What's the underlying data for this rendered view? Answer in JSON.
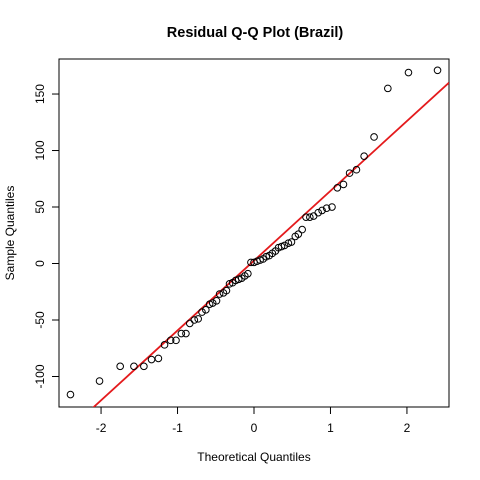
{
  "chart_data": {
    "type": "scatter",
    "title": "Residual Q-Q Plot (Brazil)",
    "xlabel": "Theoretical Quantiles",
    "ylabel": "Sample Quantiles",
    "xlim": [
      -2.55,
      2.55
    ],
    "ylim": [
      -127,
      181
    ],
    "x_ticks": [
      -2,
      -1,
      0,
      1,
      2
    ],
    "y_ticks": [
      -100,
      -50,
      0,
      50,
      100,
      150
    ],
    "x_tick_labels": [
      "-2",
      "-1",
      "0",
      "1",
      "2"
    ],
    "y_tick_labels": [
      "-100",
      "-50",
      "0",
      "50",
      "100",
      "150"
    ],
    "grid": false,
    "colors": {
      "points": "#000000",
      "reference_line": "#e41a1c"
    },
    "reference_line": {
      "intercept": 2.5,
      "slope": 61.8
    },
    "points": [
      {
        "x": -2.4,
        "y": -116
      },
      {
        "x": -2.02,
        "y": -104
      },
      {
        "x": -1.75,
        "y": -91
      },
      {
        "x": -1.57,
        "y": -91
      },
      {
        "x": -1.44,
        "y": -91
      },
      {
        "x": -1.34,
        "y": -85
      },
      {
        "x": -1.25,
        "y": -84
      },
      {
        "x": -1.17,
        "y": -72
      },
      {
        "x": -1.09,
        "y": -68
      },
      {
        "x": -1.02,
        "y": -68
      },
      {
        "x": -0.95,
        "y": -62
      },
      {
        "x": -0.89,
        "y": -62
      },
      {
        "x": -0.84,
        "y": -53
      },
      {
        "x": -0.78,
        "y": -50
      },
      {
        "x": -0.73,
        "y": -49
      },
      {
        "x": -0.68,
        "y": -43
      },
      {
        "x": -0.63,
        "y": -41
      },
      {
        "x": -0.58,
        "y": -36
      },
      {
        "x": -0.54,
        "y": -35
      },
      {
        "x": -0.49,
        "y": -33
      },
      {
        "x": -0.45,
        "y": -27
      },
      {
        "x": -0.4,
        "y": -26
      },
      {
        "x": -0.36,
        "y": -24
      },
      {
        "x": -0.32,
        "y": -18
      },
      {
        "x": -0.28,
        "y": -17
      },
      {
        "x": -0.24,
        "y": -15
      },
      {
        "x": -0.2,
        "y": -14
      },
      {
        "x": -0.16,
        "y": -13
      },
      {
        "x": -0.12,
        "y": -11
      },
      {
        "x": -0.08,
        "y": -9
      },
      {
        "x": -0.04,
        "y": 1
      },
      {
        "x": 0.0,
        "y": 1
      },
      {
        "x": 0.04,
        "y": 2
      },
      {
        "x": 0.08,
        "y": 3
      },
      {
        "x": 0.12,
        "y": 4
      },
      {
        "x": 0.16,
        "y": 6
      },
      {
        "x": 0.2,
        "y": 7
      },
      {
        "x": 0.24,
        "y": 9
      },
      {
        "x": 0.28,
        "y": 11
      },
      {
        "x": 0.32,
        "y": 14
      },
      {
        "x": 0.36,
        "y": 15
      },
      {
        "x": 0.4,
        "y": 16
      },
      {
        "x": 0.45,
        "y": 18
      },
      {
        "x": 0.49,
        "y": 19
      },
      {
        "x": 0.54,
        "y": 24
      },
      {
        "x": 0.58,
        "y": 26
      },
      {
        "x": 0.63,
        "y": 30
      },
      {
        "x": 0.68,
        "y": 41
      },
      {
        "x": 0.73,
        "y": 41
      },
      {
        "x": 0.78,
        "y": 42
      },
      {
        "x": 0.84,
        "y": 45
      },
      {
        "x": 0.89,
        "y": 47
      },
      {
        "x": 0.95,
        "y": 49
      },
      {
        "x": 1.02,
        "y": 50
      },
      {
        "x": 1.09,
        "y": 67
      },
      {
        "x": 1.17,
        "y": 70
      },
      {
        "x": 1.25,
        "y": 80
      },
      {
        "x": 1.34,
        "y": 83
      },
      {
        "x": 1.44,
        "y": 95
      },
      {
        "x": 1.57,
        "y": 112
      },
      {
        "x": 1.75,
        "y": 155
      },
      {
        "x": 2.02,
        "y": 169
      },
      {
        "x": 2.4,
        "y": 171
      }
    ]
  }
}
